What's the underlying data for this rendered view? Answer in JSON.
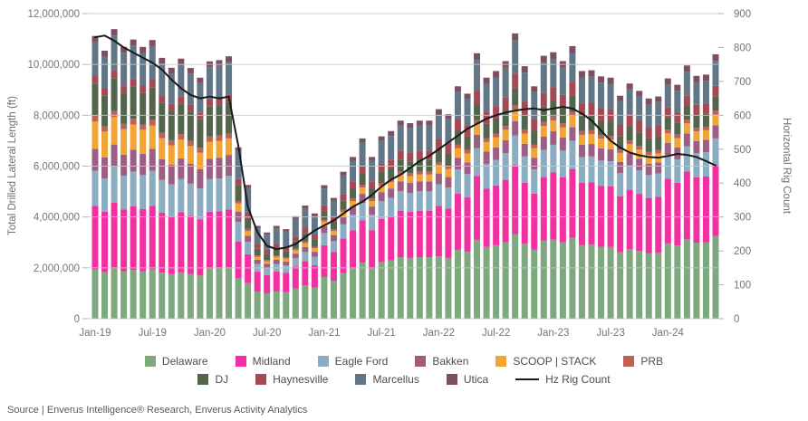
{
  "page": {
    "source_note": "Source | Enverus Intelligence® Research, Enverus Activity Analytics"
  },
  "colors": {
    "grid": "#c9c9c9",
    "tick": "#b3b3b3",
    "tick_text": "#757575",
    "line": "#1a1a1a"
  },
  "chart_data": {
    "type": "bar",
    "subtype": "stacked-bars-with-line-overlay",
    "title": "",
    "xlabel": "",
    "ylabel_left": "Total Drilled Lateral Length (ft)",
    "ylabel_right": "Horizontal Rig Count",
    "ylim_left": [
      0,
      12000000
    ],
    "ylim_right": [
      0,
      900
    ],
    "left_tick_step": 2000000,
    "right_tick_step": 100,
    "x_tick_every": 6,
    "grid": true,
    "legend_position": "bottom",
    "x": [
      "Jan-19",
      "Feb-19",
      "Mar-19",
      "Apr-19",
      "May-19",
      "Jun-19",
      "Jul-19",
      "Aug-19",
      "Sep-19",
      "Oct-19",
      "Nov-19",
      "Dec-19",
      "Jan-20",
      "Feb-20",
      "Mar-20",
      "Apr-20",
      "May-20",
      "Jun-20",
      "Jul-20",
      "Aug-20",
      "Sep-20",
      "Oct-20",
      "Nov-20",
      "Dec-20",
      "Jan-21",
      "Feb-21",
      "Mar-21",
      "Apr-21",
      "May-21",
      "Jun-21",
      "Jul-21",
      "Aug-21",
      "Sep-21",
      "Oct-21",
      "Nov-21",
      "Dec-21",
      "Jan-22",
      "Feb-22",
      "Mar-22",
      "Apr-22",
      "May-22",
      "Jun-22",
      "Jul-22",
      "Aug-22",
      "Sep-22",
      "Oct-22",
      "Nov-22",
      "Dec-22",
      "Jan-23",
      "Feb-23",
      "Mar-23",
      "Apr-23",
      "May-23",
      "Jun-23",
      "Jul-23",
      "Aug-23",
      "Sep-23",
      "Oct-23",
      "Nov-23",
      "Dec-23",
      "Jan-24",
      "Feb-24",
      "Mar-24",
      "Apr-24",
      "May-24",
      "Jun-24"
    ],
    "series": [
      {
        "name": "Delaware",
        "color": "#7ea87e",
        "values": [
          1930000,
          1830000,
          1980000,
          1860000,
          1920000,
          1870000,
          1930000,
          1810000,
          1750000,
          1820000,
          1760000,
          1700000,
          1970000,
          1980000,
          2010000,
          1590000,
          1400000,
          1070000,
          1000000,
          1070000,
          1040000,
          1190000,
          1310000,
          1220000,
          1640000,
          1490000,
          1800000,
          1980000,
          2200000,
          1980000,
          2230000,
          2290000,
          2420000,
          2390000,
          2420000,
          2420000,
          2450000,
          2390000,
          2710000,
          2630000,
          3100000,
          2820000,
          2890000,
          3010000,
          3330000,
          2950000,
          2710000,
          3070000,
          3110000,
          3010000,
          3190000,
          2890000,
          2910000,
          2830000,
          2820000,
          2610000,
          2740000,
          2660000,
          2570000,
          2600000,
          2960000,
          2880000,
          3120000,
          2990000,
          3010000,
          3260000
        ]
      },
      {
        "name": "Midland",
        "color": "#f230a2",
        "values": [
          2510000,
          2380000,
          2580000,
          2430000,
          2500000,
          2440000,
          2510000,
          2360000,
          2280000,
          2370000,
          2290000,
          2210000,
          2230000,
          2240000,
          2280000,
          1450000,
          1130000,
          780000,
          720000,
          780000,
          760000,
          860000,
          950000,
          880000,
          1250000,
          1130000,
          1360000,
          1500000,
          1670000,
          1500000,
          1690000,
          1740000,
          1830000,
          1810000,
          1830000,
          1830000,
          1990000,
          1940000,
          2210000,
          2140000,
          2520000,
          2290000,
          2350000,
          2450000,
          2710000,
          2400000,
          2210000,
          2500000,
          2640000,
          2550000,
          2700000,
          2450000,
          2460000,
          2400000,
          2390000,
          2210000,
          2330000,
          2250000,
          2180000,
          2200000,
          2540000,
          2470000,
          2670000,
          2570000,
          2580000,
          2790000
        ]
      },
      {
        "name": "Eagle Ford",
        "color": "#8badc2",
        "values": [
          1380000,
          1310000,
          1410000,
          1330000,
          1370000,
          1340000,
          1380000,
          1290000,
          1250000,
          1300000,
          1260000,
          1210000,
          1290000,
          1300000,
          1330000,
          760000,
          490000,
          300000,
          280000,
          300000,
          290000,
          330000,
          360000,
          340000,
          480000,
          430000,
          550000,
          610000,
          680000,
          610000,
          700000,
          720000,
          760000,
          750000,
          760000,
          760000,
          850000,
          830000,
          950000,
          920000,
          1080000,
          980000,
          1010000,
          1050000,
          1160000,
          1030000,
          950000,
          1070000,
          1090000,
          1050000,
          1110000,
          1010000,
          1010000,
          990000,
          980000,
          910000,
          960000,
          930000,
          900000,
          910000,
          940000,
          920000,
          990000,
          950000,
          960000,
          1040000
        ]
      },
      {
        "name": "Bakken",
        "color": "#9d5e84",
        "values": [
          860000,
          820000,
          880000,
          830000,
          850000,
          830000,
          860000,
          810000,
          780000,
          810000,
          780000,
          760000,
          800000,
          810000,
          820000,
          410000,
          240000,
          170000,
          160000,
          170000,
          160000,
          180000,
          200000,
          190000,
          270000,
          240000,
          290000,
          320000,
          360000,
          320000,
          360000,
          370000,
          390000,
          390000,
          390000,
          390000,
          420000,
          410000,
          460000,
          450000,
          530000,
          480000,
          490000,
          510000,
          570000,
          500000,
          460000,
          520000,
          530000,
          510000,
          540000,
          490000,
          490000,
          480000,
          480000,
          440000,
          470000,
          450000,
          440000,
          440000,
          470000,
          460000,
          500000,
          480000,
          480000,
          520000
        ]
      },
      {
        "name": "SCOOP | STACK",
        "color": "#f2a434",
        "values": [
          1080000,
          1020000,
          1080000,
          1000000,
          1000000,
          950000,
          920000,
          830000,
          760000,
          750000,
          700000,
          650000,
          670000,
          660000,
          650000,
          320000,
          190000,
          110000,
          100000,
          110000,
          110000,
          130000,
          150000,
          140000,
          180000,
          160000,
          200000,
          220000,
          250000,
          220000,
          250000,
          260000,
          270000,
          270000,
          270000,
          270000,
          330000,
          320000,
          370000,
          360000,
          420000,
          380000,
          390000,
          410000,
          450000,
          400000,
          370000,
          420000,
          420000,
          410000,
          430000,
          390000,
          390000,
          380000,
          380000,
          350000,
          370000,
          360000,
          350000,
          350000,
          380000,
          370000,
          400000,
          380000,
          380000,
          410000
        ]
      },
      {
        "name": "PRB",
        "color": "#bd6257",
        "values": [
          220000,
          210000,
          230000,
          210000,
          220000,
          210000,
          220000,
          210000,
          200000,
          210000,
          200000,
          190000,
          210000,
          210000,
          210000,
          100000,
          80000,
          60000,
          50000,
          60000,
          50000,
          60000,
          70000,
          60000,
          80000,
          70000,
          90000,
          100000,
          110000,
          100000,
          110000,
          110000,
          120000,
          120000,
          120000,
          120000,
          120000,
          120000,
          140000,
          130000,
          160000,
          140000,
          150000,
          150000,
          170000,
          150000,
          140000,
          160000,
          160000,
          150000,
          160000,
          150000,
          150000,
          140000,
          140000,
          130000,
          140000,
          140000,
          130000,
          130000,
          140000,
          140000,
          150000,
          140000,
          140000,
          160000
        ]
      },
      {
        "name": "DJ",
        "color": "#53654d",
        "values": [
          1270000,
          1200000,
          1300000,
          1220000,
          1260000,
          1230000,
          1270000,
          1190000,
          1150000,
          1200000,
          1160000,
          1120000,
          1190000,
          1200000,
          1220000,
          620000,
          430000,
          260000,
          240000,
          260000,
          250000,
          290000,
          320000,
          290000,
          320000,
          290000,
          350000,
          380000,
          430000,
          380000,
          430000,
          440000,
          470000,
          460000,
          470000,
          470000,
          500000,
          490000,
          550000,
          530000,
          630000,
          570000,
          590000,
          610000,
          680000,
          600000,
          550000,
          620000,
          630000,
          610000,
          650000,
          590000,
          590000,
          580000,
          570000,
          530000,
          560000,
          540000,
          520000,
          530000,
          500000,
          480000,
          520000,
          500000,
          510000,
          550000
        ]
      },
      {
        "name": "Haynesville",
        "color": "#a34a54",
        "values": [
          310000,
          290000,
          320000,
          300000,
          310000,
          300000,
          310000,
          290000,
          280000,
          290000,
          280000,
          270000,
          290000,
          290000,
          300000,
          240000,
          210000,
          170000,
          160000,
          170000,
          160000,
          180000,
          200000,
          190000,
          240000,
          220000,
          260000,
          290000,
          320000,
          290000,
          320000,
          330000,
          350000,
          350000,
          350000,
          350000,
          420000,
          410000,
          460000,
          450000,
          530000,
          480000,
          490000,
          510000,
          570000,
          500000,
          460000,
          520000,
          530000,
          510000,
          540000,
          490000,
          490000,
          480000,
          480000,
          440000,
          470000,
          450000,
          440000,
          440000,
          390000,
          380000,
          420000,
          400000,
          400000,
          430000
        ]
      },
      {
        "name": "Marcellus",
        "color": "#617788",
        "values": [
          1320000,
          1250000,
          1360000,
          1280000,
          1310000,
          1280000,
          1320000,
          1240000,
          1200000,
          1250000,
          1210000,
          1160000,
          1240000,
          1250000,
          1270000,
          1100000,
          970000,
          630000,
          590000,
          630000,
          610000,
          700000,
          770000,
          720000,
          660000,
          600000,
          730000,
          800000,
          890000,
          800000,
          900000,
          930000,
          980000,
          960000,
          980000,
          980000,
          950000,
          930000,
          1060000,
          1020000,
          1210000,
          1100000,
          1130000,
          1170000,
          1300000,
          1150000,
          1060000,
          1200000,
          1110000,
          1070000,
          1130000,
          1030000,
          1030000,
          1010000,
          1000000,
          930000,
          980000,
          950000,
          910000,
          920000,
          890000,
          870000,
          940000,
          900000,
          900000,
          980000
        ]
      },
      {
        "name": "Utica",
        "color": "#7d5061",
        "values": [
          240000,
          230000,
          250000,
          230000,
          240000,
          240000,
          240000,
          230000,
          220000,
          230000,
          220000,
          210000,
          230000,
          230000,
          230000,
          150000,
          120000,
          100000,
          90000,
          100000,
          90000,
          110000,
          120000,
          110000,
          130000,
          120000,
          150000,
          160000,
          180000,
          160000,
          180000,
          190000,
          200000,
          190000,
          200000,
          200000,
          210000,
          200000,
          230000,
          220000,
          260000,
          240000,
          250000,
          260000,
          280000,
          250000,
          230000,
          260000,
          260000,
          260000,
          270000,
          250000,
          250000,
          240000,
          240000,
          220000,
          230000,
          230000,
          220000,
          220000,
          240000,
          230000,
          250000,
          240000,
          240000,
          260000
        ]
      }
    ],
    "line_series": {
      "name": "Hz Rig Count",
      "color": "#1a1a1a",
      "values": [
        830,
        835,
        820,
        800,
        785,
        770,
        755,
        735,
        705,
        680,
        660,
        650,
        655,
        650,
        655,
        510,
        330,
        255,
        215,
        205,
        210,
        220,
        240,
        260,
        275,
        290,
        310,
        330,
        345,
        365,
        390,
        410,
        425,
        445,
        465,
        480,
        500,
        520,
        540,
        560,
        575,
        590,
        600,
        608,
        614,
        618,
        620,
        615,
        620,
        625,
        620,
        605,
        585,
        555,
        525,
        505,
        490,
        482,
        477,
        475,
        480,
        486,
        483,
        477,
        465,
        452
      ]
    }
  }
}
